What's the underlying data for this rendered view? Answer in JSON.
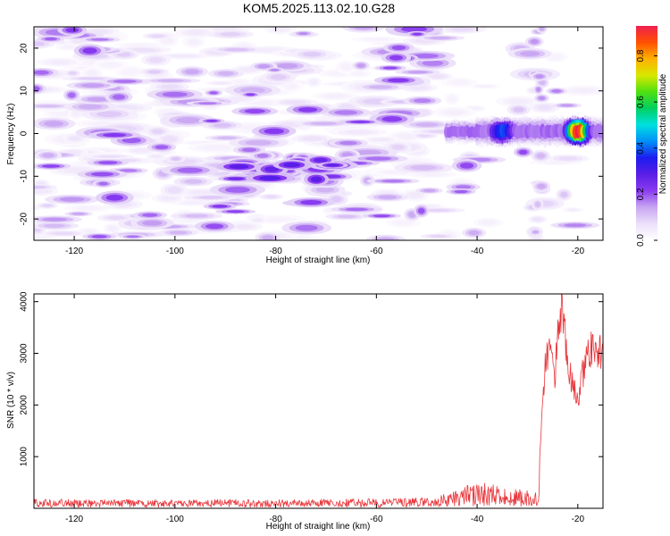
{
  "figure_title": "KOM5.2025.113.02.10.G28",
  "chart_data": [
    {
      "type": "heatmap",
      "title": "KOM5.2025.113.02.10.G28",
      "xlabel": "Height of straight line (km)",
      "ylabel": "Frequency (Hz)",
      "xlim": [
        -128,
        -15
      ],
      "ylim": [
        -25,
        25
      ],
      "xticks": [
        -120,
        -100,
        -80,
        -60,
        -40,
        -20
      ],
      "yticks": [
        20,
        10,
        0,
        -10,
        -20
      ],
      "colorbar": {
        "label": "Normalized spectral amplitude",
        "range": [
          0,
          0.93
        ],
        "ticks": [
          0.0,
          0.2,
          0.4,
          0.6,
          0.8
        ],
        "colormap": [
          "#ffffff",
          "#ece0fa",
          "#c9a6f2",
          "#8a3cf0",
          "#5a1ee6",
          "#1c1cf0",
          "#0090f8",
          "#00e0e0",
          "#00d060",
          "#50e010",
          "#d8e800",
          "#ffb000",
          "#ff5000",
          "#f02050"
        ]
      },
      "signal": {
        "ridge": {
          "x_start": -46,
          "x_end": -15,
          "frequency": 0.5,
          "peak_x": -20,
          "peak_value": 0.93,
          "secondary_peak_x": -35,
          "secondary_peak_value": 0.38
        },
        "noise_cluster": {
          "x_range": [
            -88,
            -68
          ],
          "frequency_range": [
            -11,
            -5
          ],
          "max_value": 0.3
        },
        "vertical_band_x": -28
      },
      "grid": false,
      "legend": "none"
    },
    {
      "type": "line",
      "title": "",
      "xlabel": "Height of straight line (km)",
      "ylabel": "SNR (10 * v/v)",
      "xlim": [
        -128,
        -15
      ],
      "ylim": [
        0,
        4150
      ],
      "xticks": [
        -120,
        -100,
        -80,
        -60,
        -40,
        -20
      ],
      "yticks": [
        1000,
        2000,
        3000,
        4000
      ],
      "color": "#e8353a",
      "series": [
        {
          "baseline_points": [
            [
              -128,
              120
            ],
            [
              -100,
              110
            ],
            [
              -80,
              120
            ],
            [
              -60,
              125
            ],
            [
              -50,
              140
            ],
            [
              -45,
              200
            ],
            [
              -42,
              300
            ],
            [
              -38,
              330
            ],
            [
              -33,
              260
            ],
            [
              -28,
              230
            ]
          ],
          "envelope_points": [
            [
              -27.5,
              1200
            ],
            [
              -27,
              2300
            ],
            [
              -26.5,
              2900
            ],
            [
              -25.5,
              3500
            ],
            [
              -25,
              3000
            ],
            [
              -24.5,
              2800
            ],
            [
              -24,
              3700
            ],
            [
              -23.3,
              4000
            ],
            [
              -22.5,
              3600
            ],
            [
              -22,
              3000
            ],
            [
              -21,
              2500
            ],
            [
              -20,
              2300
            ],
            [
              -19,
              2800
            ],
            [
              -18,
              3200
            ],
            [
              -17,
              3450
            ],
            [
              -16,
              3300
            ],
            [
              -15,
              3150
            ]
          ],
          "max": {
            "x": -23.2,
            "y": 4150
          }
        }
      ],
      "grid": false,
      "legend": "none"
    }
  ]
}
